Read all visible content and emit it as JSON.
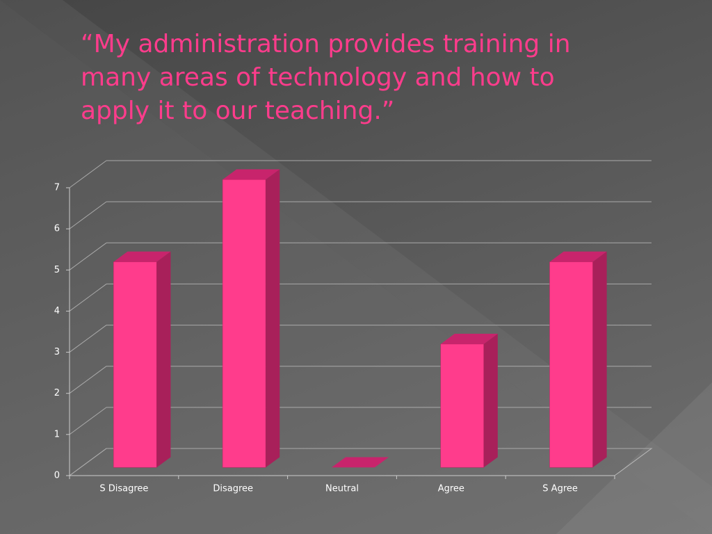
{
  "chart_data": {
    "type": "bar3d",
    "title": "“My administration provides training in many areas of technology and how to apply it to our teaching.”",
    "categories": [
      "S Disagree",
      "Disagree",
      "Neutral",
      "Agree",
      "S Agree"
    ],
    "values": [
      5,
      7,
      0,
      3,
      5
    ],
    "color": "#ff3c8c",
    "ylim": [
      0,
      7
    ],
    "yticks": [
      0,
      1,
      2,
      3,
      4,
      5,
      6,
      7
    ],
    "grid": true
  }
}
